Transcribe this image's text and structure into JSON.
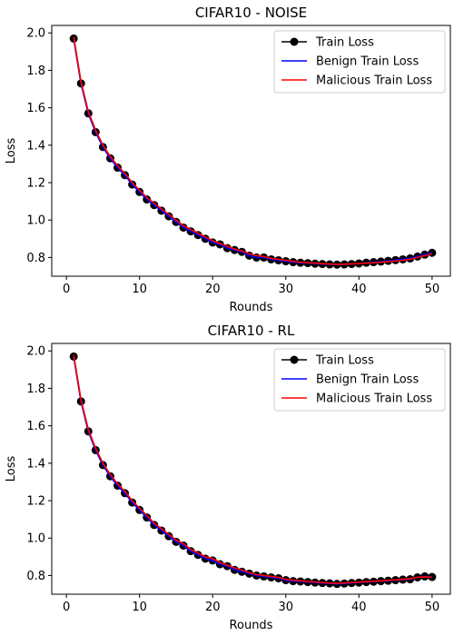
{
  "chart_data": [
    {
      "type": "line",
      "title": "CIFAR10 - NOISE",
      "xlabel": "Rounds",
      "ylabel": "Loss",
      "xlim": [
        -2,
        52.5
      ],
      "ylim": [
        0.7,
        2.04
      ],
      "xticks": [
        0,
        10,
        20,
        30,
        40,
        50
      ],
      "yticks": [
        0.8,
        1.0,
        1.2,
        1.4,
        1.6,
        1.8,
        2.0
      ],
      "grid": false,
      "legend_position": "upper right",
      "x": [
        1,
        2,
        3,
        4,
        5,
        6,
        7,
        8,
        9,
        10,
        11,
        12,
        13,
        14,
        15,
        16,
        17,
        18,
        19,
        20,
        21,
        22,
        23,
        24,
        25,
        26,
        27,
        28,
        29,
        30,
        31,
        32,
        33,
        34,
        35,
        36,
        37,
        38,
        39,
        40,
        41,
        42,
        43,
        44,
        45,
        46,
        47,
        48,
        49,
        50
      ],
      "series": [
        {
          "name": "Train Loss",
          "color": "#000000",
          "marker": "circle",
          "values": [
            1.97,
            1.73,
            1.57,
            1.47,
            1.39,
            1.33,
            1.28,
            1.24,
            1.19,
            1.15,
            1.11,
            1.08,
            1.05,
            1.02,
            0.99,
            0.96,
            0.94,
            0.92,
            0.9,
            0.88,
            0.87,
            0.85,
            0.84,
            0.83,
            0.81,
            0.8,
            0.8,
            0.79,
            0.785,
            0.78,
            0.775,
            0.772,
            0.77,
            0.767,
            0.765,
            0.763,
            0.762,
            0.763,
            0.765,
            0.768,
            0.772,
            0.775,
            0.778,
            0.782,
            0.786,
            0.79,
            0.795,
            0.805,
            0.815,
            0.825
          ]
        },
        {
          "name": "Benign Train Loss",
          "color": "#0000ff",
          "marker": "none",
          "values": [
            1.97,
            1.73,
            1.57,
            1.47,
            1.39,
            1.33,
            1.28,
            1.24,
            1.19,
            1.15,
            1.11,
            1.08,
            1.05,
            1.02,
            0.99,
            0.96,
            0.94,
            0.92,
            0.9,
            0.88,
            0.87,
            0.85,
            0.84,
            0.83,
            0.81,
            0.8,
            0.8,
            0.79,
            0.785,
            0.78,
            0.775,
            0.772,
            0.77,
            0.767,
            0.765,
            0.763,
            0.762,
            0.763,
            0.765,
            0.768,
            0.772,
            0.775,
            0.778,
            0.782,
            0.786,
            0.79,
            0.795,
            0.805,
            0.815,
            0.825
          ]
        },
        {
          "name": "Malicious Train Loss",
          "color": "#ff0000",
          "marker": "none",
          "values": [
            1.98,
            1.74,
            1.58,
            1.48,
            1.4,
            1.34,
            1.29,
            1.25,
            1.2,
            1.16,
            1.12,
            1.09,
            1.06,
            1.03,
            1.0,
            0.97,
            0.95,
            0.93,
            0.91,
            0.89,
            0.875,
            0.86,
            0.845,
            0.835,
            0.82,
            0.81,
            0.805,
            0.795,
            0.79,
            0.785,
            0.78,
            0.775,
            0.772,
            0.77,
            0.767,
            0.765,
            0.763,
            0.764,
            0.766,
            0.768,
            0.77,
            0.772,
            0.775,
            0.778,
            0.781,
            0.785,
            0.79,
            0.8,
            0.81,
            0.82
          ]
        }
      ]
    },
    {
      "type": "line",
      "title": "CIFAR10 - RL",
      "xlabel": "Rounds",
      "ylabel": "Loss",
      "xlim": [
        -2,
        52.5
      ],
      "ylim": [
        0.7,
        2.04
      ],
      "xticks": [
        0,
        10,
        20,
        30,
        40,
        50
      ],
      "yticks": [
        0.8,
        1.0,
        1.2,
        1.4,
        1.6,
        1.8,
        2.0
      ],
      "grid": false,
      "legend_position": "upper right",
      "x": [
        1,
        2,
        3,
        4,
        5,
        6,
        7,
        8,
        9,
        10,
        11,
        12,
        13,
        14,
        15,
        16,
        17,
        18,
        19,
        20,
        21,
        22,
        23,
        24,
        25,
        26,
        27,
        28,
        29,
        30,
        31,
        32,
        33,
        34,
        35,
        36,
        37,
        38,
        39,
        40,
        41,
        42,
        43,
        44,
        45,
        46,
        47,
        48,
        49,
        50
      ],
      "series": [
        {
          "name": "Train Loss",
          "color": "#000000",
          "marker": "circle",
          "values": [
            1.97,
            1.73,
            1.57,
            1.47,
            1.39,
            1.33,
            1.28,
            1.24,
            1.19,
            1.15,
            1.11,
            1.07,
            1.04,
            1.01,
            0.98,
            0.96,
            0.93,
            0.91,
            0.89,
            0.88,
            0.86,
            0.85,
            0.83,
            0.82,
            0.81,
            0.8,
            0.795,
            0.79,
            0.785,
            0.775,
            0.77,
            0.768,
            0.765,
            0.762,
            0.76,
            0.758,
            0.755,
            0.757,
            0.76,
            0.762,
            0.765,
            0.767,
            0.77,
            0.772,
            0.775,
            0.778,
            0.78,
            0.79,
            0.795,
            0.792
          ]
        },
        {
          "name": "Benign Train Loss",
          "color": "#0000ff",
          "marker": "none",
          "values": [
            1.97,
            1.73,
            1.57,
            1.47,
            1.39,
            1.33,
            1.28,
            1.24,
            1.19,
            1.15,
            1.11,
            1.07,
            1.04,
            1.01,
            0.98,
            0.96,
            0.93,
            0.91,
            0.89,
            0.88,
            0.86,
            0.85,
            0.83,
            0.82,
            0.81,
            0.8,
            0.795,
            0.79,
            0.785,
            0.775,
            0.77,
            0.768,
            0.765,
            0.762,
            0.76,
            0.758,
            0.755,
            0.757,
            0.76,
            0.762,
            0.765,
            0.767,
            0.77,
            0.772,
            0.775,
            0.778,
            0.78,
            0.79,
            0.795,
            0.792
          ]
        },
        {
          "name": "Malicious Train Loss",
          "color": "#ff0000",
          "marker": "none",
          "values": [
            1.98,
            1.74,
            1.58,
            1.48,
            1.4,
            1.34,
            1.29,
            1.25,
            1.2,
            1.16,
            1.12,
            1.08,
            1.05,
            1.02,
            0.99,
            0.97,
            0.94,
            0.92,
            0.9,
            0.89,
            0.87,
            0.855,
            0.84,
            0.83,
            0.815,
            0.805,
            0.8,
            0.795,
            0.79,
            0.78,
            0.775,
            0.772,
            0.768,
            0.765,
            0.762,
            0.76,
            0.758,
            0.76,
            0.762,
            0.764,
            0.767,
            0.769,
            0.772,
            0.774,
            0.777,
            0.78,
            0.783,
            0.79,
            0.793,
            0.79
          ]
        }
      ]
    }
  ]
}
